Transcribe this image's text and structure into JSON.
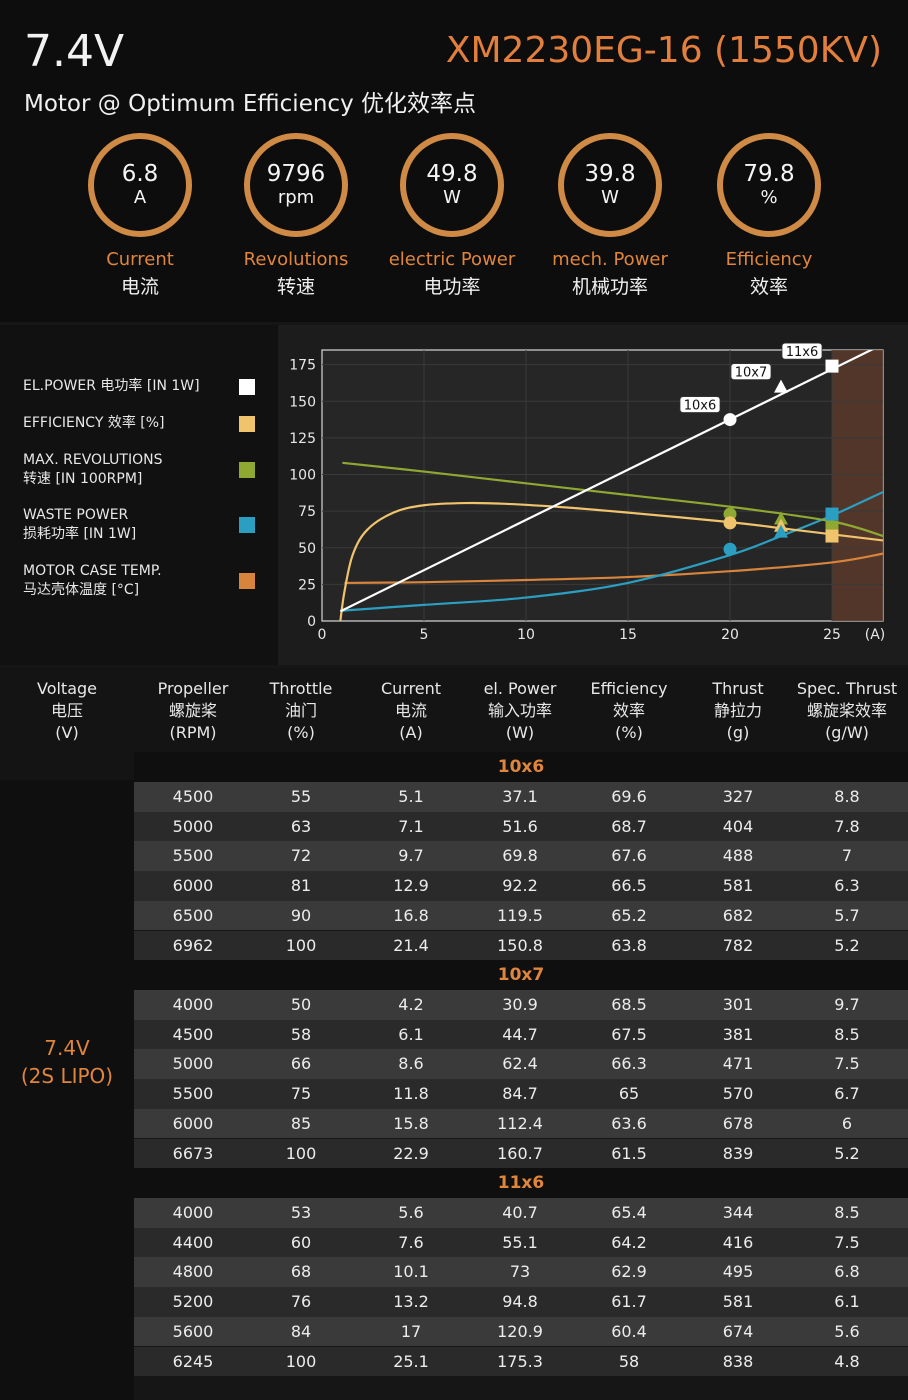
{
  "header": {
    "voltage": "7.4V",
    "model": "XM2230EG-16 (1550KV)",
    "subtitle": "Motor @ Optimum Efficiency  优化效率点"
  },
  "gauges": [
    {
      "value": "6.8",
      "unit": "A",
      "en": "Current",
      "zh": "电流"
    },
    {
      "value": "9796",
      "unit": "rpm",
      "en": "Revolutions",
      "zh": "转速"
    },
    {
      "value": "49.8",
      "unit": "W",
      "en": "electric Power",
      "zh": "电功率"
    },
    {
      "value": "39.8",
      "unit": "W",
      "en": "mech. Power",
      "zh": "机械功率"
    },
    {
      "value": "79.8",
      "unit": "%",
      "en": "Efficiency",
      "zh": "效率"
    }
  ],
  "legend": [
    {
      "line1": "EL.POWER 电功率 [IN 1W]",
      "line2": "",
      "color": "#ffffff"
    },
    {
      "line1": "EFFICIENCY 效率 [%]",
      "line2": "",
      "color": "#f0c36d"
    },
    {
      "line1": "MAX. REVOLUTIONS",
      "line2": "转速 [IN 100RPM]",
      "color": "#8ea832"
    },
    {
      "line1": "WASTE POWER",
      "line2": "损耗功率 [IN 1W]",
      "color": "#2b9fc1"
    },
    {
      "line1": "MOTOR CASE TEMP.",
      "line2": "马达壳体温度 [°C]",
      "color": "#d8843c"
    }
  ],
  "chart_data": {
    "type": "line",
    "xlabel": "(A)",
    "xlim": [
      0,
      27.5
    ],
    "ylim": [
      0,
      185
    ],
    "xticks": [
      0,
      5,
      10,
      15,
      20,
      25
    ],
    "yticks": [
      0,
      25,
      50,
      75,
      100,
      125,
      150,
      175
    ],
    "shaded_region_x": [
      25,
      27.5
    ],
    "series": [
      {
        "name": "EL.POWER 电功率 [IN 1W]",
        "color": "#ffffff",
        "points": [
          [
            0.9,
            6.6
          ],
          [
            27.5,
            189
          ]
        ]
      },
      {
        "name": "EFFICIENCY 效率 [%]",
        "color": "#f0c36d",
        "points": [
          [
            0.9,
            0
          ],
          [
            1.1,
            20
          ],
          [
            1.5,
            45
          ],
          [
            2.2,
            62
          ],
          [
            3.5,
            74
          ],
          [
            5,
            79
          ],
          [
            7,
            80.5
          ],
          [
            9,
            80
          ],
          [
            12,
            77.5
          ],
          [
            15,
            74
          ],
          [
            20,
            67.5
          ],
          [
            23,
            62.5
          ],
          [
            27.5,
            55
          ]
        ]
      },
      {
        "name": "MAX. REVOLUTIONS",
        "color": "#8ea832",
        "points": [
          [
            1,
            108
          ],
          [
            5,
            102
          ],
          [
            10,
            94
          ],
          [
            15,
            86
          ],
          [
            20,
            78
          ],
          [
            25,
            68
          ],
          [
            27.5,
            58
          ]
        ]
      },
      {
        "name": "WASTE POWER",
        "color": "#2b9fc1",
        "points": [
          [
            0.9,
            7
          ],
          [
            5,
            11
          ],
          [
            10,
            16
          ],
          [
            15,
            26
          ],
          [
            20,
            45
          ],
          [
            22.5,
            58
          ],
          [
            25,
            72
          ],
          [
            27.5,
            88
          ]
        ]
      },
      {
        "name": "MOTOR CASE TEMP.",
        "color": "#d8843c",
        "points": [
          [
            1.1,
            26
          ],
          [
            5,
            26.5
          ],
          [
            10,
            28
          ],
          [
            15,
            30
          ],
          [
            20,
            34
          ],
          [
            25,
            40
          ],
          [
            27.5,
            46
          ]
        ]
      }
    ],
    "markers": [
      {
        "label": "10x6",
        "x": 20,
        "points": [
          {
            "y": 137.5,
            "color": "#ffffff"
          },
          {
            "y": 73,
            "color": "#8ea832"
          },
          {
            "y": 67,
            "color": "#f0c36d"
          },
          {
            "y": 49,
            "color": "#2b9fc1"
          }
        ],
        "shape": "circle"
      },
      {
        "label": "10x7",
        "x": 22.5,
        "points": [
          {
            "y": 160,
            "color": "#ffffff"
          },
          {
            "y": 70,
            "color": "#8ea832"
          },
          {
            "y": 65,
            "color": "#f0c36d"
          },
          {
            "y": 61,
            "color": "#2b9fc1"
          }
        ],
        "shape": "triangle"
      },
      {
        "label": "11x6",
        "x": 25,
        "points": [
          {
            "y": 174,
            "color": "#ffffff"
          },
          {
            "y": 73,
            "color": "#2b9fc1"
          },
          {
            "y": 64,
            "color": "#8ea832"
          },
          {
            "y": 58,
            "color": "#f0c36d"
          }
        ],
        "shape": "square"
      }
    ]
  },
  "table": {
    "headers": [
      {
        "en": "Voltage",
        "zh": "电压",
        "unit": "(V)"
      },
      {
        "en": "Propeller",
        "zh": "螺旋桨",
        "unit": "(RPM)"
      },
      {
        "en": "Throttle",
        "zh": "油门",
        "unit": "(%)"
      },
      {
        "en": "Current",
        "zh": "电流",
        "unit": "(A)"
      },
      {
        "en": "el. Power",
        "zh": "输入功率",
        "unit": "(W)"
      },
      {
        "en": "Efficiency",
        "zh": "效率",
        "unit": "(%)"
      },
      {
        "en": "Thrust",
        "zh": "静拉力",
        "unit": "(g)"
      },
      {
        "en": "Spec. Thrust",
        "zh": "螺旋桨效率",
        "unit": "(g/W)"
      }
    ],
    "voltage_line1": "7.4V",
    "voltage_line2": "(2S LIPO)",
    "groups": [
      {
        "name": "10x6",
        "rows": [
          [
            "4500",
            "55",
            "5.1",
            "37.1",
            "69.6",
            "327",
            "8.8"
          ],
          [
            "5000",
            "63",
            "7.1",
            "51.6",
            "68.7",
            "404",
            "7.8"
          ],
          [
            "5500",
            "72",
            "9.7",
            "69.8",
            "67.6",
            "488",
            "7"
          ],
          [
            "6000",
            "81",
            "12.9",
            "92.2",
            "66.5",
            "581",
            "6.3"
          ],
          [
            "6500",
            "90",
            "16.8",
            "119.5",
            "65.2",
            "682",
            "5.7"
          ],
          [
            "6962",
            "100",
            "21.4",
            "150.8",
            "63.8",
            "782",
            "5.2"
          ]
        ]
      },
      {
        "name": "10x7",
        "rows": [
          [
            "4000",
            "50",
            "4.2",
            "30.9",
            "68.5",
            "301",
            "9.7"
          ],
          [
            "4500",
            "58",
            "6.1",
            "44.7",
            "67.5",
            "381",
            "8.5"
          ],
          [
            "5000",
            "66",
            "8.6",
            "62.4",
            "66.3",
            "471",
            "7.5"
          ],
          [
            "5500",
            "75",
            "11.8",
            "84.7",
            "65",
            "570",
            "6.7"
          ],
          [
            "6000",
            "85",
            "15.8",
            "112.4",
            "63.6",
            "678",
            "6"
          ],
          [
            "6673",
            "100",
            "22.9",
            "160.7",
            "61.5",
            "839",
            "5.2"
          ]
        ]
      },
      {
        "name": "11x6",
        "rows": [
          [
            "4000",
            "53",
            "5.6",
            "40.7",
            "65.4",
            "344",
            "8.5"
          ],
          [
            "4400",
            "60",
            "7.6",
            "55.1",
            "64.2",
            "416",
            "7.5"
          ],
          [
            "4800",
            "68",
            "10.1",
            "73",
            "62.9",
            "495",
            "6.8"
          ],
          [
            "5200",
            "76",
            "13.2",
            "94.8",
            "61.7",
            "581",
            "6.1"
          ],
          [
            "5600",
            "84",
            "17",
            "120.9",
            "60.4",
            "674",
            "5.6"
          ],
          [
            "6245",
            "100",
            "25.1",
            "175.3",
            "58",
            "838",
            "4.8"
          ]
        ]
      }
    ]
  }
}
